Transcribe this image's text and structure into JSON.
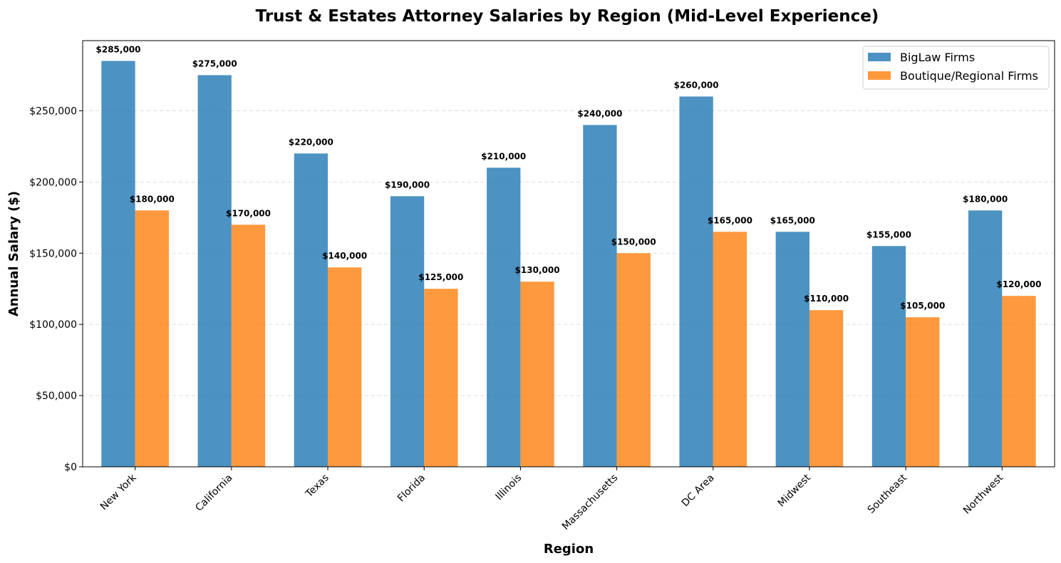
{
  "chart_data": {
    "type": "bar",
    "title": "Trust & Estates Attorney Salaries by Region (Mid-Level Experience)",
    "xlabel": "Region",
    "ylabel": "Annual Salary ($)",
    "categories": [
      "New York",
      "California",
      "Texas",
      "Florida",
      "Illinois",
      "Massachusetts",
      "DC Area",
      "Midwest",
      "Southeast",
      "Northwest"
    ],
    "series": [
      {
        "name": "BigLaw Firms",
        "color": "#1f77b4",
        "values": [
          285000,
          275000,
          220000,
          190000,
          210000,
          240000,
          260000,
          165000,
          155000,
          180000
        ]
      },
      {
        "name": "Boutique/Regional Firms",
        "color": "#ff7f0e",
        "values": [
          180000,
          170000,
          140000,
          125000,
          130000,
          150000,
          165000,
          110000,
          105000,
          120000
        ]
      }
    ],
    "ylim": [
      0,
      299250
    ],
    "yticks": [
      0,
      50000,
      100000,
      150000,
      200000,
      250000
    ],
    "ytick_labels": [
      "$0",
      "$50,000",
      "$100,000",
      "$150,000",
      "$200,000",
      "$250,000"
    ],
    "grid": true,
    "legend_position": "top-right"
  }
}
